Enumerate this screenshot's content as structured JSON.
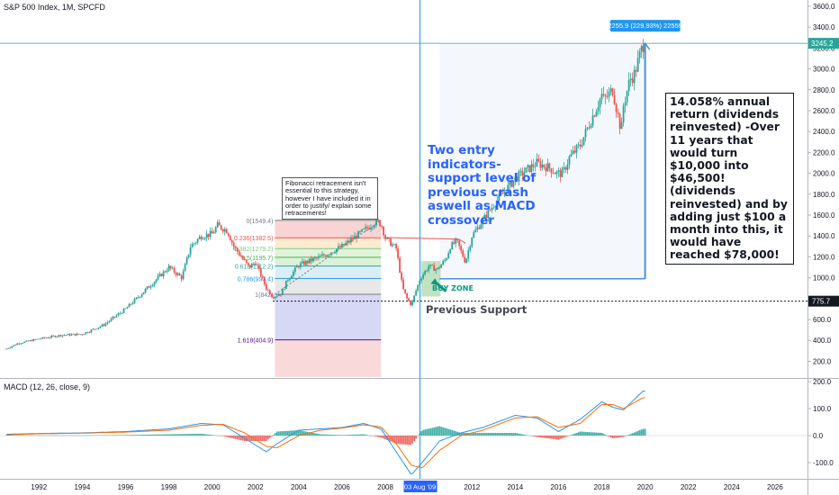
{
  "chart_title": "S&P 500 Index, 1M, SPCFD",
  "macd_title": "MACD (12, 26, close, 9)",
  "colors": {
    "up": "#26a69a",
    "down": "#ef5350",
    "macd_line": "#2196f3",
    "signal_line": "#ff6d00",
    "annotation_blue": "#2962ff",
    "measure_blue": "#4a90e2"
  },
  "chart_data": [
    {
      "type": "line",
      "title": "S&P 500 Index, 1M, SPCFD",
      "y_axis_ticks": [
        "3600.0",
        "3400.0",
        "3200.0",
        "3000.0",
        "2800.0",
        "2600.0",
        "2400.0",
        "2200.0",
        "2000.0",
        "1800.0",
        "1600.0",
        "1400.0",
        "1200.0",
        "1000.0",
        "800.0",
        "600.0",
        "400.0",
        "200.0"
      ],
      "x_axis_ticks": [
        "1992",
        "1994",
        "1996",
        "1998",
        "2000",
        "2002",
        "2004",
        "2006",
        "2008",
        "2010",
        "2012",
        "2014",
        "2016",
        "2018",
        "2020",
        "2022",
        "2024",
        "2026"
      ],
      "ylim": [
        40,
        3660
      ],
      "xlim": [
        1990.2,
        2027.5
      ],
      "series": [
        {
          "style": "monthly candles",
          "x": [
            1990.5,
            1991,
            1992,
            1993,
            1994,
            1995,
            1996,
            1997,
            1998,
            1998.6,
            1999,
            1999.5,
            2000,
            2000.25,
            2000.7,
            2001,
            2001.7,
            2002,
            2002.5,
            2002.8,
            2003.2,
            2003.5,
            2004,
            2005,
            2006,
            2007,
            2007.5,
            2007.8,
            2008,
            2008.5,
            2008.8,
            2009,
            2009.2,
            2009.6,
            2010,
            2010.4,
            2010.8,
            2011,
            2011.3,
            2011.7,
            2012,
            2013,
            2014,
            2015,
            2015.6,
            2015.9,
            2016.2,
            2016.5,
            2017,
            2018,
            2018.1,
            2018.5,
            2018.9,
            2019,
            2019.3,
            2019.5,
            2019.9
          ],
          "y": [
            320,
            370,
            415,
            450,
            460,
            550,
            700,
            900,
            1100,
            1000,
            1300,
            1400,
            1420,
            1500,
            1450,
            1300,
            1100,
            1150,
            900,
            820,
            850,
            990,
            1120,
            1200,
            1300,
            1450,
            1530,
            1520,
            1380,
            1280,
            900,
            800,
            740,
            990,
            1110,
            1080,
            1180,
            1300,
            1350,
            1150,
            1400,
            1700,
            1950,
            2100,
            2050,
            2000,
            2000,
            2150,
            2270,
            2750,
            2700,
            2800,
            2400,
            2650,
            2900,
            2950,
            3230
          ]
        }
      ],
      "fibonacci": [
        {
          "ratio": "0",
          "value": "1549.4"
        },
        {
          "ratio": "0.236",
          "value": "1382.5"
        },
        {
          "ratio": "0.382",
          "value": "1279.2"
        },
        {
          "ratio": "0.5",
          "value": "1195.7"
        },
        {
          "ratio": "0.618",
          "value": "1112.2"
        },
        {
          "ratio": "0.786",
          "value": "993.4"
        },
        {
          "ratio": "1",
          "value": "842"
        },
        {
          "ratio": "1.618",
          "value": "404.9"
        }
      ],
      "fib_labels": [
        "0(1549.4)",
        "0.236(1382.5)",
        "0.382(1279.2)",
        "0.5(1195.7)",
        "0.618(1112.2)",
        "0.786(993.4)",
        "1(842)",
        "1.618(404.9)"
      ],
      "price_markers": [
        "3245.2",
        "775.7"
      ],
      "measure_label": "2255.9 (229.93%) 22559",
      "support_level": 775.7,
      "x_marker": "03 Aug '09"
    },
    {
      "type": "line",
      "title": "MACD (12, 26, close, 9)",
      "y_axis_ticks": [
        "200.0",
        "100.0",
        "0.0",
        "-100.0"
      ],
      "ylim": [
        -160,
        210
      ],
      "series": [
        {
          "name": "MACD",
          "x": [
            1990.5,
            1992,
            1994,
            1996,
            1998,
            1999.5,
            2000.5,
            2001.5,
            2002.5,
            2003,
            2004,
            2005,
            2006,
            2007,
            2007.8,
            2008.5,
            2009.2,
            2009.7,
            2010.5,
            2011.5,
            2012.5,
            2014,
            2015,
            2016,
            2017,
            2018,
            2018.5,
            2019,
            2019.9
          ],
          "values": [
            5,
            8,
            10,
            15,
            25,
            45,
            40,
            -10,
            -60,
            -30,
            20,
            25,
            30,
            45,
            25,
            -60,
            -145,
            -100,
            -20,
            10,
            30,
            75,
            65,
            15,
            60,
            125,
            105,
            95,
            165
          ]
        },
        {
          "name": "Signal",
          "x": [
            1990.5,
            1992,
            1994,
            1996,
            1998,
            1999.5,
            2000.5,
            2001.5,
            2002.5,
            2003,
            2004,
            2005,
            2006,
            2007,
            2007.8,
            2008.5,
            2009.2,
            2009.7,
            2010.5,
            2011.5,
            2012.5,
            2014,
            2015,
            2016,
            2017,
            2018,
            2018.5,
            2019,
            2019.9
          ],
          "values": [
            3,
            7,
            9,
            13,
            20,
            38,
            42,
            10,
            -40,
            -45,
            0,
            20,
            28,
            40,
            32,
            -30,
            -110,
            -120,
            -55,
            0,
            20,
            65,
            70,
            30,
            45,
            115,
            115,
            100,
            140
          ]
        }
      ]
    }
  ],
  "annotations": {
    "fib_note": "Fibonacci retracement isn't essential to this strategy, however I have included it in order to justify/ explain some retracements!",
    "entry_note": "Two entry indicators- support level of previous crash aswell as MACD crossover",
    "return_note": "14.058% annual return (dividends reinvested) -Over 11 years that would turn $10,000 into $46,500! (dividends reinvested) and by adding just $100 a month into this, it would have reached $78,000!",
    "previous_support": "Previous Support",
    "buy_zone": "BUY ZONE"
  }
}
